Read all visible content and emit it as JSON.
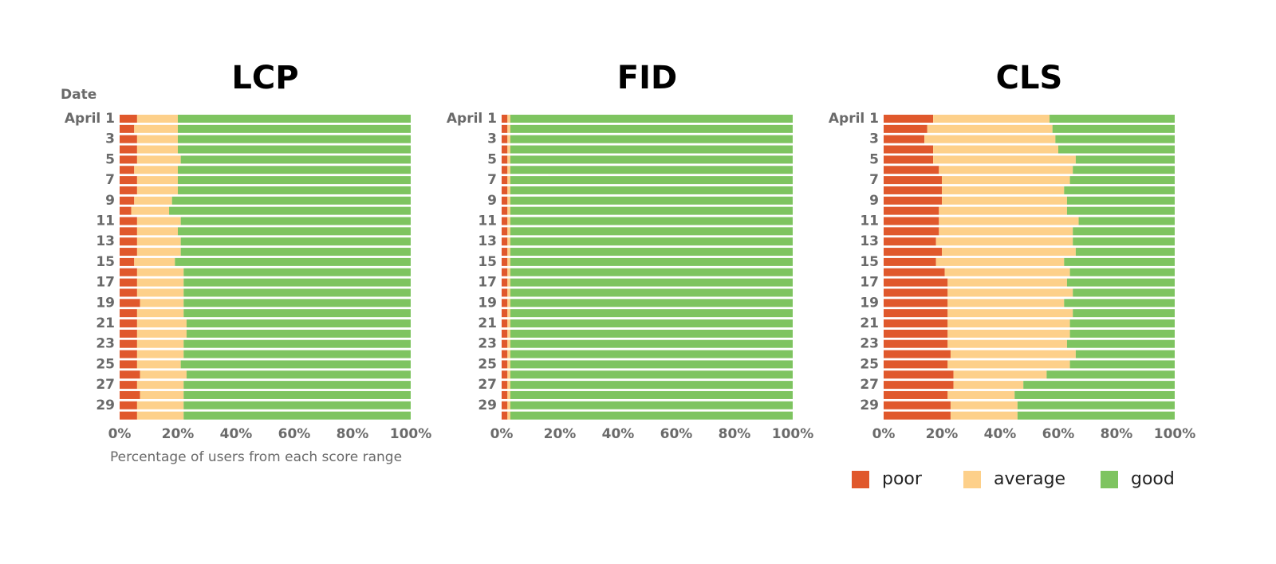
{
  "chart_data": [
    {
      "type": "stacked_barh",
      "title": "LCP",
      "y_axis_label": "Date",
      "x_axis_label": "Percentage of users from each score range",
      "categories": [
        "April 1",
        null,
        "3",
        null,
        "5",
        null,
        "7",
        null,
        "9",
        null,
        "11",
        null,
        "13",
        null,
        "15",
        null,
        "17",
        null,
        "19",
        null,
        "21",
        null,
        "23",
        null,
        "25",
        null,
        "27",
        null,
        "29",
        null
      ],
      "series": [
        {
          "color": "#e0582c",
          "values": [
            6,
            5,
            6,
            6,
            6,
            5,
            6,
            6,
            5,
            4,
            6,
            6,
            6,
            6,
            5,
            6,
            6,
            6,
            7,
            6,
            6,
            6,
            6,
            6,
            6,
            7,
            6,
            7,
            6,
            6
          ]
        },
        {
          "color": "#fdd08a",
          "values": [
            14,
            15,
            14,
            14,
            15,
            15,
            14,
            14,
            13,
            13,
            15,
            14,
            15,
            15,
            14,
            16,
            16,
            16,
            15,
            16,
            17,
            17,
            16,
            16,
            15,
            16,
            16,
            15,
            16,
            16
          ]
        },
        {
          "color": "#7ec460",
          "values": [
            80,
            80,
            80,
            80,
            79,
            80,
            80,
            80,
            82,
            83,
            79,
            80,
            79,
            79,
            81,
            78,
            78,
            78,
            78,
            78,
            77,
            77,
            78,
            78,
            79,
            77,
            78,
            78,
            78,
            78
          ]
        }
      ],
      "xlim": [
        0,
        100
      ],
      "xticks": [
        {
          "value": 0,
          "label": "0%"
        },
        {
          "value": 20,
          "label": "20%"
        },
        {
          "value": 40,
          "label": "40%"
        },
        {
          "value": 60,
          "label": "60%"
        },
        {
          "value": 80,
          "label": "80%"
        },
        {
          "value": 100,
          "label": "100%"
        }
      ]
    },
    {
      "type": "stacked_barh",
      "title": "FID",
      "categories": [
        "April 1",
        null,
        "3",
        null,
        "5",
        null,
        "7",
        null,
        "9",
        null,
        "11",
        null,
        "13",
        null,
        "15",
        null,
        "17",
        null,
        "19",
        null,
        "21",
        null,
        "23",
        null,
        "25",
        null,
        "27",
        null,
        "29",
        null
      ],
      "series": [
        {
          "color": "#e0582c",
          "values": [
            2,
            2,
            2,
            2,
            2,
            2,
            2,
            2,
            2,
            2,
            2,
            2,
            2,
            2,
            2,
            2,
            2,
            2,
            2,
            2,
            2,
            2,
            2,
            2,
            2,
            2,
            2,
            2,
            2,
            2
          ]
        },
        {
          "color": "#fdd08a",
          "values": [
            1,
            1,
            1,
            1,
            1,
            1,
            1,
            1,
            1,
            1,
            1,
            1,
            1,
            1,
            1,
            1,
            1,
            1,
            1,
            1,
            1,
            1,
            1,
            1,
            1,
            1,
            1,
            1,
            1,
            1
          ]
        },
        {
          "color": "#7ec460",
          "values": [
            97,
            97,
            97,
            97,
            97,
            97,
            97,
            97,
            97,
            97,
            97,
            97,
            97,
            97,
            97,
            97,
            97,
            97,
            97,
            97,
            97,
            97,
            97,
            97,
            97,
            97,
            97,
            97,
            97,
            97
          ]
        }
      ],
      "xlim": [
        0,
        100
      ],
      "xticks": [
        {
          "value": 0,
          "label": "0%"
        },
        {
          "value": 20,
          "label": "20%"
        },
        {
          "value": 40,
          "label": "40%"
        },
        {
          "value": 60,
          "label": "60%"
        },
        {
          "value": 80,
          "label": "80%"
        },
        {
          "value": 100,
          "label": "100%"
        }
      ]
    },
    {
      "type": "stacked_barh",
      "title": "CLS",
      "legend": "bottom",
      "categories": [
        "April 1",
        null,
        "3",
        null,
        "5",
        null,
        "7",
        null,
        "9",
        null,
        "11",
        null,
        "13",
        null,
        "15",
        null,
        "17",
        null,
        "19",
        null,
        "21",
        null,
        "23",
        null,
        "25",
        null,
        "27",
        null,
        "29",
        null
      ],
      "series": [
        {
          "name": "poor",
          "color": "#e0582c",
          "values": [
            17,
            15,
            14,
            17,
            17,
            19,
            20,
            20,
            20,
            19,
            19,
            19,
            18,
            20,
            18,
            21,
            22,
            22,
            22,
            22,
            22,
            22,
            22,
            23,
            22,
            24,
            24,
            22,
            23,
            23
          ]
        },
        {
          "name": "average",
          "color": "#fdd08a",
          "values": [
            40,
            43,
            45,
            43,
            49,
            46,
            44,
            42,
            43,
            44,
            48,
            46,
            47,
            46,
            44,
            43,
            41,
            43,
            40,
            43,
            42,
            42,
            41,
            43,
            42,
            32,
            24,
            23,
            23,
            23
          ]
        },
        {
          "name": "good",
          "color": "#7ec460",
          "values": [
            43,
            42,
            41,
            40,
            34,
            35,
            36,
            38,
            37,
            37,
            33,
            35,
            35,
            34,
            38,
            36,
            37,
            35,
            38,
            35,
            36,
            36,
            37,
            34,
            36,
            44,
            52,
            55,
            54,
            54
          ]
        }
      ],
      "xlim": [
        0,
        100
      ],
      "xticks": [
        {
          "value": 0,
          "label": "0%"
        },
        {
          "value": 20,
          "label": "20%"
        },
        {
          "value": 40,
          "label": "40%"
        },
        {
          "value": 60,
          "label": "60%"
        },
        {
          "value": 80,
          "label": "80%"
        },
        {
          "value": 100,
          "label": "100%"
        }
      ]
    }
  ]
}
